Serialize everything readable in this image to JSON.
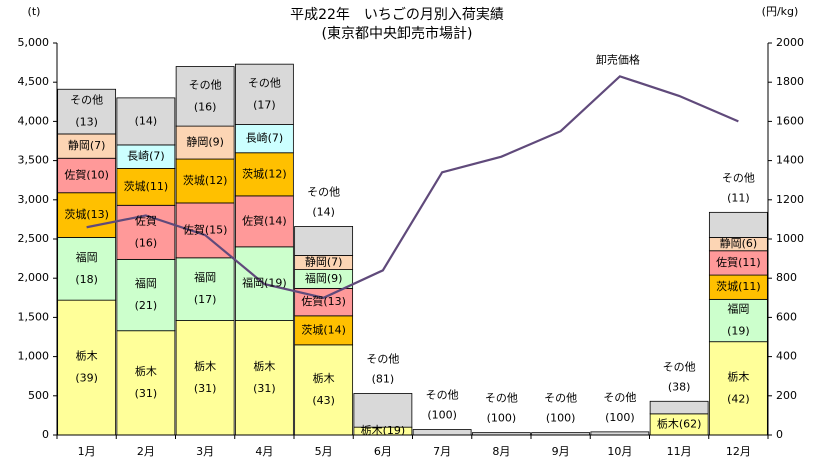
{
  "chart_data": {
    "type": "stacked-bar+line",
    "title": "平成22年　いちごの月別入荷実績",
    "subtitle": "(東京都中央卸売市場計)",
    "y_left_unit": "(t)",
    "y_right_unit": "(円/kg)",
    "y_left_range": [
      0,
      5000
    ],
    "y_left_ticks": [
      "0",
      "500",
      "1,000",
      "1,500",
      "2,000",
      "2,500",
      "3,000",
      "3,500",
      "4,000",
      "4,500",
      "5,000"
    ],
    "y_right_range": [
      0,
      2000
    ],
    "y_right_ticks": [
      "0",
      "200",
      "400",
      "600",
      "800",
      "1000",
      "1200",
      "1400",
      "1600",
      "1800",
      "2000"
    ],
    "categories": [
      "1月",
      "2月",
      "3月",
      "4月",
      "5月",
      "6月",
      "7月",
      "8月",
      "9月",
      "10月",
      "11月",
      "12月"
    ],
    "colors": {
      "栃木": "#ffff99",
      "福岡": "#ccffcc",
      "茨城": "#ffc000",
      "佐賀": "#ff9999",
      "長崎": "#ccffff",
      "静岡": "#fcd5b4",
      "その他": "#d9d9d9",
      "line": "#604a7b"
    },
    "stacks": [
      [
        {
          "name": "栃木",
          "value": 1720,
          "label": "栃木\n(39)"
        },
        {
          "name": "福岡",
          "value": 800,
          "label": "福岡\n(18)"
        },
        {
          "name": "茨城",
          "value": 570,
          "label": "茨城(13)"
        },
        {
          "name": "佐賀",
          "value": 440,
          "label": "佐賀(10)"
        },
        {
          "name": "静岡",
          "value": 310,
          "label": "静岡(7)"
        },
        {
          "name": "その他",
          "value": 570,
          "label": "その他\n(13)"
        }
      ],
      [
        {
          "name": "栃木",
          "value": 1330,
          "label": "栃木\n(31)"
        },
        {
          "name": "福岡",
          "value": 910,
          "label": "福岡\n(21)"
        },
        {
          "name": "佐賀",
          "value": 690,
          "label": "佐賀\n(16)"
        },
        {
          "name": "茨城",
          "value": 470,
          "label": "茨城(11)"
        },
        {
          "name": "長崎",
          "value": 300,
          "label": "長崎(7)"
        },
        {
          "name": "その他",
          "value": 600,
          "label": "(14)"
        }
      ],
      [
        {
          "name": "栃木",
          "value": 1460,
          "label": "栃木\n(31)"
        },
        {
          "name": "福岡",
          "value": 800,
          "label": "福岡\n(17)"
        },
        {
          "name": "佐賀",
          "value": 700,
          "label": "佐賀(15)"
        },
        {
          "name": "茨城",
          "value": 560,
          "label": "茨城(12)"
        },
        {
          "name": "静岡",
          "value": 420,
          "label": "静岡(9)"
        },
        {
          "name": "その他",
          "value": 760,
          "label": "その他\n(16)"
        }
      ],
      [
        {
          "name": "栃木",
          "value": 1460,
          "label": "栃木\n(31)"
        },
        {
          "name": "福岡",
          "value": 940,
          "label": "福岡(19)"
        },
        {
          "name": "佐賀",
          "value": 650,
          "label": "佐賀(14)"
        },
        {
          "name": "茨城",
          "value": 550,
          "label": "茨城(12)"
        },
        {
          "name": "長崎",
          "value": 360,
          "label": "長崎(7)"
        },
        {
          "name": "その他",
          "value": 770,
          "label": "その他\n(17)"
        }
      ],
      [
        {
          "name": "栃木",
          "value": 1150,
          "label": "栃木\n(43)"
        },
        {
          "name": "茨城",
          "value": 370,
          "label": "茨城(14)"
        },
        {
          "name": "佐賀",
          "value": 350,
          "label": "佐賀(13)"
        },
        {
          "name": "福岡",
          "value": 240,
          "label": "福岡(9)"
        },
        {
          "name": "静岡",
          "value": 180,
          "label": "静岡(7)"
        },
        {
          "name": "その他",
          "value": 370,
          "label": ""
        }
      ],
      [
        {
          "name": "栃木",
          "value": 100,
          "label": "栃木(19)"
        },
        {
          "name": "その他",
          "value": 430,
          "label": ""
        }
      ],
      [
        {
          "name": "その他",
          "value": 70,
          "label": ""
        }
      ],
      [
        {
          "name": "その他",
          "value": 30,
          "label": ""
        }
      ],
      [
        {
          "name": "その他",
          "value": 30,
          "label": ""
        }
      ],
      [
        {
          "name": "その他",
          "value": 40,
          "label": ""
        }
      ],
      [
        {
          "name": "栃木",
          "value": 270,
          "label": "栃木(62)"
        },
        {
          "name": "その他",
          "value": 160,
          "label": ""
        }
      ],
      [
        {
          "name": "栃木",
          "value": 1190,
          "label": "栃木\n(42)"
        },
        {
          "name": "福岡",
          "value": 540,
          "label": "福岡\n(19)"
        },
        {
          "name": "茨城",
          "value": 310,
          "label": "茨城(11)"
        },
        {
          "name": "佐賀",
          "value": 310,
          "label": "佐賀(11)"
        },
        {
          "name": "静岡",
          "value": 170,
          "label": "静岡(6)"
        },
        {
          "name": "その他",
          "value": 320,
          "label": ""
        }
      ]
    ],
    "top_labels": [
      {
        "month": 4,
        "text": "その他\n(14)"
      },
      {
        "month": 5,
        "text": "その他\n(81)"
      },
      {
        "month": 6,
        "text": "その他\n(100)"
      },
      {
        "month": 7,
        "text": "その他\n(100)"
      },
      {
        "month": 8,
        "text": "その他\n(100)"
      },
      {
        "month": 9,
        "text": "その他\n(100)"
      },
      {
        "month": 10,
        "text": "その他\n(38)"
      },
      {
        "month": 11,
        "text": "その他\n(11)"
      }
    ],
    "line_series": {
      "name": "卸売価格",
      "values": [
        1060,
        1120,
        1020,
        770,
        700,
        840,
        1340,
        1420,
        1550,
        1830,
        1730,
        1600
      ]
    },
    "line_label": "卸売価格"
  }
}
